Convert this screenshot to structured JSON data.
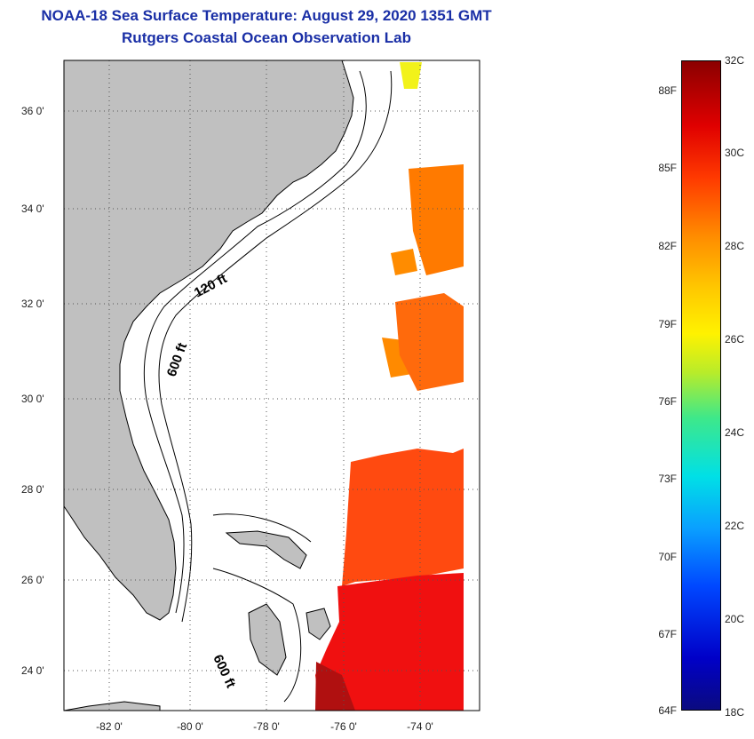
{
  "title_line1": "NOAA-18 Sea Surface Temperature:  August 29, 2020 1351 GMT",
  "title_line2": "Rutgers Coastal Ocean Observation Lab",
  "map": {
    "lat_labels": [
      "36 0'",
      "34 0'",
      "32 0'",
      "30 0'",
      "28 0'",
      "26 0'",
      "24 0'"
    ],
    "lon_labels": [
      "-82 0'",
      "-80 0'",
      "-78 0'",
      "-76 0'",
      "-74 0'"
    ],
    "contour_labels": [
      "120 ft",
      "600 ft",
      "600 ft"
    ]
  },
  "colorbar": {
    "fahrenheit_labels": [
      "88F",
      "85F",
      "82F",
      "79F",
      "76F",
      "73F",
      "70F",
      "67F",
      "64F"
    ],
    "celsius_labels": [
      "32C",
      "30C",
      "28C",
      "26C",
      "24C",
      "22C",
      "20C",
      "18C"
    ]
  },
  "colors": {
    "title": "#1a2fa6",
    "land": "#c0c0c0"
  }
}
